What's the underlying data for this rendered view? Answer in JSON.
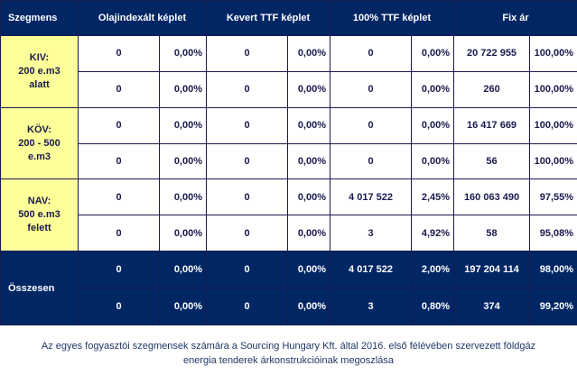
{
  "header": {
    "segment": "Szegmens",
    "oil": "Olajindexált képlet",
    "mixed": "Kevert TTF képlet",
    "ttf100": "100% TTF képlet",
    "fixed": "Fix ár"
  },
  "segments": [
    {
      "label_lines": [
        "KIV:",
        "200 e.m3",
        "alatt"
      ],
      "rows": [
        [
          "0",
          "0,00%",
          "0",
          "0,00%",
          "0",
          "0,00%",
          "20 722 955",
          "100,00%"
        ],
        [
          "0",
          "0,00%",
          "0",
          "0,00%",
          "0",
          "0,00%",
          "260",
          "100,00%"
        ]
      ]
    },
    {
      "label_lines": [
        "KÖV:",
        "200 - 500",
        "e.m3"
      ],
      "rows": [
        [
          "0",
          "0,00%",
          "0",
          "0,00%",
          "0",
          "0,00%",
          "16 417 669",
          "100,00%"
        ],
        [
          "0",
          "0,00%",
          "0",
          "0,00%",
          "0",
          "0,00%",
          "56",
          "100,00%"
        ]
      ]
    },
    {
      "label_lines": [
        "NAV:",
        "500 e.m3",
        "felett"
      ],
      "rows": [
        [
          "0",
          "0,00%",
          "0",
          "0,00%",
          "4 017 522",
          "2,45%",
          "160 063 490",
          "97,55%"
        ],
        [
          "0",
          "0,00%",
          "0",
          "0,00%",
          "3",
          "4,92%",
          "58",
          "95,08%"
        ]
      ]
    }
  ],
  "total": {
    "label": "Összesen",
    "rows": [
      [
        "0",
        "0,00%",
        "0",
        "0,00%",
        "4 017 522",
        "2,00%",
        "197 204 114",
        "98,00%"
      ],
      [
        "0",
        "0,00%",
        "0",
        "0,00%",
        "3",
        "0,80%",
        "374",
        "99,20%"
      ]
    ]
  },
  "caption": {
    "line1": "Az egyes fogyasztói szegmensek számára a Sourcing Hungary Kft. által 2016. első félévében szervezett földgáz",
    "line2": "energia tenderek árkonstrukcióinak megoszlása"
  }
}
